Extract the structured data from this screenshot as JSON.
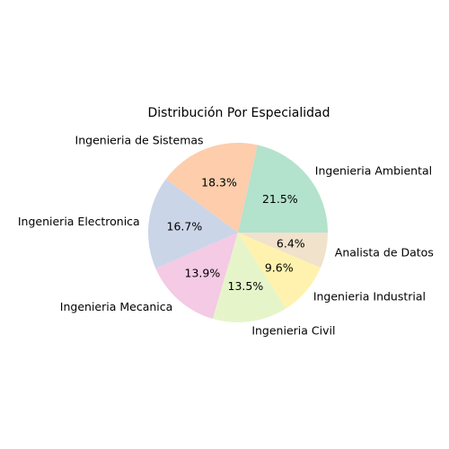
{
  "chart_data": {
    "type": "pie",
    "title": "Distribución Por Especialidad",
    "slices": [
      {
        "label": "Ingenieria Ambiental",
        "value": 21.5,
        "pct_label": "21.5%",
        "color": "#b3e2cd"
      },
      {
        "label": "Ingenieria de Sistemas",
        "value": 18.3,
        "pct_label": "18.3%",
        "color": "#fdcdac"
      },
      {
        "label": "Ingenieria Electronica",
        "value": 16.7,
        "pct_label": "16.7%",
        "color": "#cbd5e8"
      },
      {
        "label": "Ingenieria Mecanica",
        "value": 13.9,
        "pct_label": "13.9%",
        "color": "#f4cae4"
      },
      {
        "label": "Ingenieria Civil",
        "value": 13.5,
        "pct_label": "13.5%",
        "color": "#e6f5c9"
      },
      {
        "label": "Ingenieria Industrial",
        "value": 9.6,
        "pct_label": "9.6%",
        "color": "#fff2ae"
      },
      {
        "label": "Analista de Datos",
        "value": 6.4,
        "pct_label": "6.4%",
        "color": "#f1e2cc"
      }
    ],
    "start_angle": "0° (3 o'clock), counter-clockwise",
    "legend": "none"
  }
}
